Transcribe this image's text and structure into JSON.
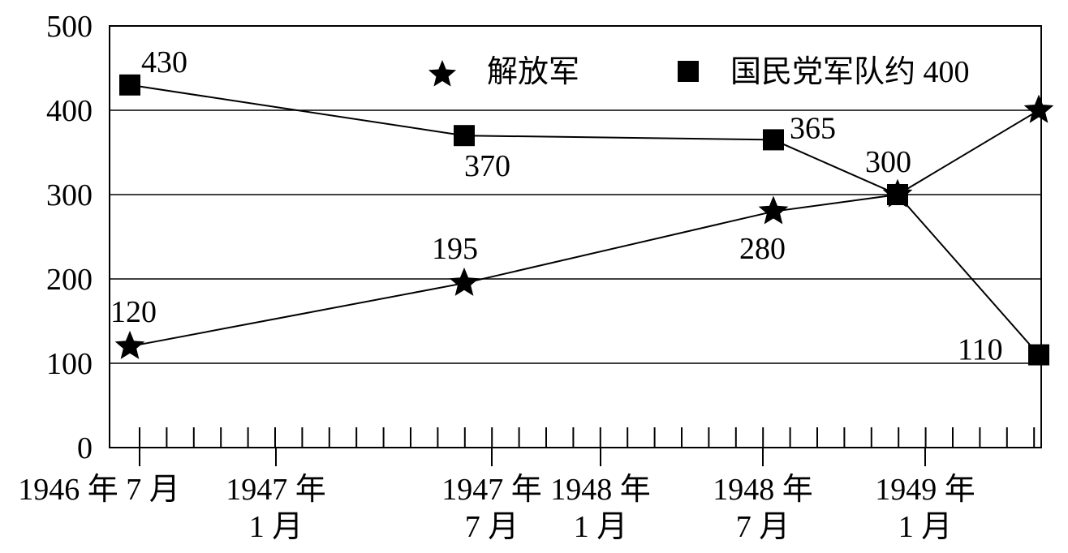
{
  "chart_data": {
    "type": "line",
    "title": "",
    "xlabel": "",
    "ylabel": "",
    "ylim": [
      0,
      500
    ],
    "yticks": [
      "0",
      "100",
      "200",
      "300",
      "400",
      "500"
    ],
    "grid": true,
    "legend_placement": "top-right",
    "x_tick_labels": [
      {
        "line1": "1946 年 7 月",
        "line2": ""
      },
      {
        "line1": "1947 年",
        "line2": "1 月"
      },
      {
        "line1": "1947 年",
        "line2": "7 月"
      },
      {
        "line1": "1948 年",
        "line2": "1 月"
      },
      {
        "line1": "1948 年",
        "line2": "7 月"
      },
      {
        "line1": "1949 年",
        "line2": "1 月"
      }
    ],
    "series": [
      {
        "name": "解放军",
        "marker": "star",
        "x": [
          "1946-07",
          "1947-07",
          "1948-07",
          "1949-01",
          "1949-06"
        ],
        "values": [
          120,
          195,
          280,
          300,
          400
        ],
        "labels": [
          "120",
          "195",
          "280",
          "",
          ""
        ]
      },
      {
        "name": "国民党军队约 400",
        "marker": "square",
        "x": [
          "1946-07",
          "1947-07",
          "1948-07",
          "1949-01",
          "1949-06"
        ],
        "values": [
          430,
          370,
          365,
          300,
          110
        ],
        "labels": [
          "430",
          "370",
          "365",
          "300",
          "110"
        ]
      }
    ]
  }
}
